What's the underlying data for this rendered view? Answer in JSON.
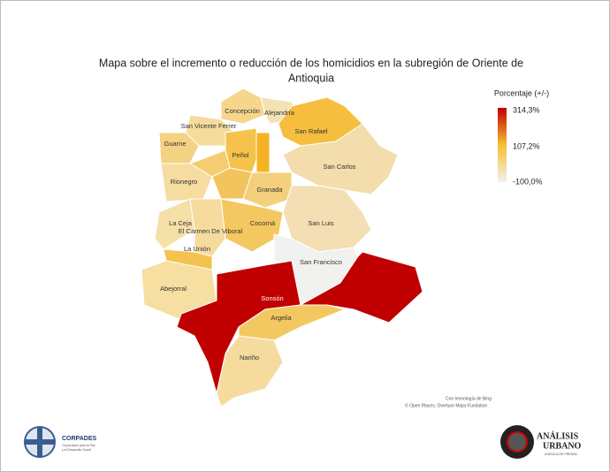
{
  "map": {
    "title": [
      "Mapa sobre el incremento o reducción de los homicidios en la subregión de Oriente de",
      "Antioquia"
    ],
    "legend": {
      "title": "Porcentaje (+/-)",
      "labels": [
        "314,3%",
        "107,2%",
        "-100,0%"
      ],
      "colors": [
        "#c00000",
        "#f5c030",
        "#f2f0ea"
      ]
    },
    "regions": [
      {
        "name": "Concepción",
        "color": "#f6d68a"
      },
      {
        "name": "Alejandría",
        "color": "#f3e2b4"
      },
      {
        "name": "San Rafael",
        "color": "#f5be3e"
      },
      {
        "name": "San Carlos",
        "color": "#f3ddac"
      },
      {
        "name": "San Vicente Ferrer",
        "color": "#f5dc9c"
      },
      {
        "name": "Guarne",
        "color": "#f4d284"
      },
      {
        "name": "Peñol",
        "color": "#f5c24b"
      },
      {
        "name": null,
        "color": "#f5b324"
      },
      {
        "name": "Rionegro",
        "color": "#f6dca0"
      },
      {
        "name": null,
        "color": "#f4cd70"
      },
      {
        "name": "Granada",
        "color": "#f4d07c"
      },
      {
        "name": null,
        "color": "#f3c35c"
      },
      {
        "name": "San Luis",
        "color": "#f3dfb3"
      },
      {
        "name": "La Ceja",
        "color": "#f5e0a8"
      },
      {
        "name": "El Carmen De Viboral",
        "color": "#f5dc9e"
      },
      {
        "name": "Cocorná",
        "color": "#f4c860"
      },
      {
        "name": "San Francisco",
        "color": "#f1f1ef"
      },
      {
        "name": "La Unión",
        "color": "#f4c24e"
      },
      {
        "name": "Abejorral",
        "color": "#f6dfa0"
      },
      {
        "name": "Sonsón",
        "color": "#c00000"
      },
      {
        "name": "Argelia",
        "color": "#f4c860"
      },
      {
        "name": "Nariño",
        "color": "#f5dc9e"
      }
    ],
    "attribution": [
      "Con tecnología de Bing",
      "© Open Places, Overture Maps Fundation"
    ],
    "logos": {
      "left": [
        "CORPADES",
        "Corporación para la Paz",
        "y el Desarrollo Social"
      ],
      "right": [
        "ANÁLISIS",
        "URBANO",
        "AGENCIA DE PRENSA"
      ]
    }
  }
}
